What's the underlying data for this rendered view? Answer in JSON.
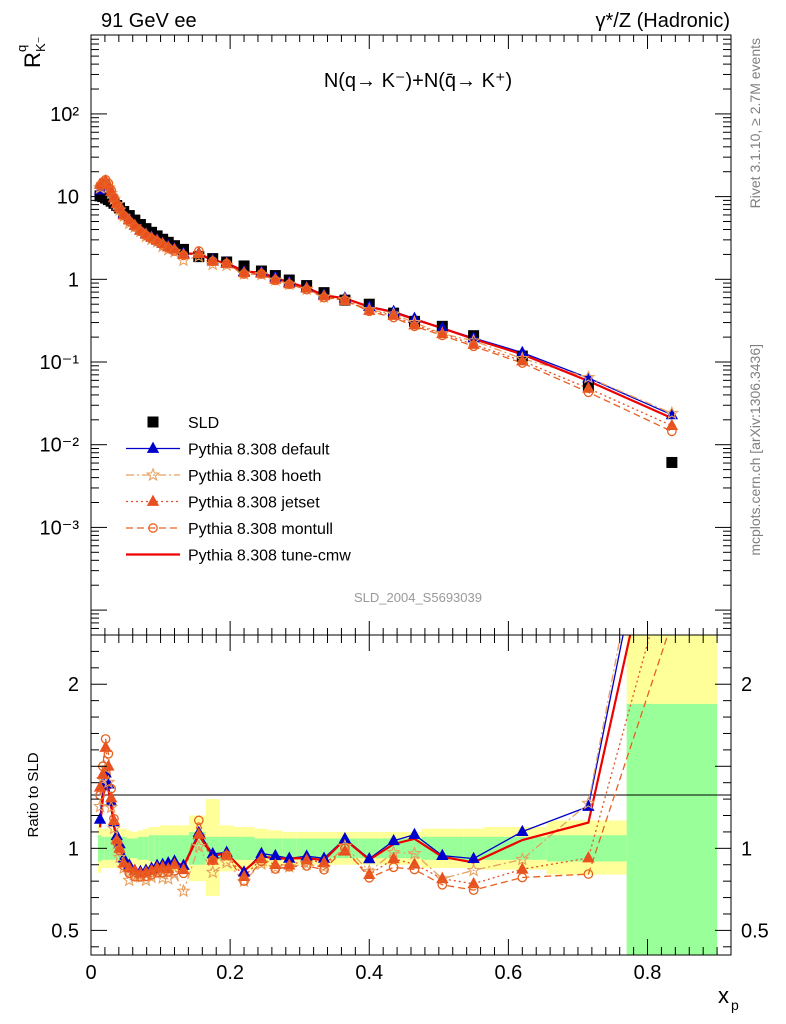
{
  "header": {
    "left": "91 GeV ee",
    "right": "γ*/Z (Hadronic)"
  },
  "side_labels": {
    "rivet": "Rivet 3.1.10, ≥ 2.7M events",
    "mcplots": "mcplots.cern.ch [arXiv:1306.3436]"
  },
  "chart_data": [
    {
      "type": "scatter",
      "title": "N(q→ K⁻)+N(q̄→ K⁺)",
      "ylabel": "R^q_K⁻",
      "analysis_tag": "SLD_2004_S5693039",
      "yscale": "log",
      "xlim": [
        0,
        0.92
      ],
      "ylim": [
        5e-05,
        900
      ],
      "y_ticks": [
        {
          "value": 0.001,
          "label": "10⁻³"
        },
        {
          "value": 0.01,
          "label": "10⁻²"
        },
        {
          "value": 0.1,
          "label": "10⁻¹"
        },
        {
          "value": 1,
          "label": "1"
        },
        {
          "value": 10,
          "label": "10"
        },
        {
          "value": 100,
          "label": "10²"
        }
      ],
      "legend_position": "lower-left",
      "x": [
        0.013,
        0.017,
        0.021,
        0.025,
        0.029,
        0.033,
        0.037,
        0.041,
        0.047,
        0.055,
        0.063,
        0.071,
        0.079,
        0.087,
        0.095,
        0.103,
        0.111,
        0.12,
        0.133,
        0.155,
        0.175,
        0.195,
        0.22,
        0.245,
        0.265,
        0.285,
        0.31,
        0.335,
        0.365,
        0.4,
        0.435,
        0.465,
        0.505,
        0.55,
        0.62,
        0.715,
        0.835
      ],
      "data": {
        "name": "SLD",
        "values": [
          10.2,
          10.0,
          9.6,
          9.2,
          8.8,
          8.3,
          7.8,
          7.3,
          6.6,
          5.9,
          5.2,
          4.6,
          4.1,
          3.7,
          3.35,
          3.05,
          2.8,
          2.55,
          2.3,
          1.88,
          1.78,
          1.62,
          1.45,
          1.26,
          1.11,
          0.98,
          0.84,
          0.69,
          0.56,
          0.5,
          0.39,
          0.31,
          0.27,
          0.208,
          0.118,
          0.051,
          0.0061
        ]
      },
      "series": [
        {
          "name": "Pythia 8.308 default",
          "color": "#0000cc",
          "style": "solid",
          "marker": "triangle",
          "values": [
            12.0,
            13.8,
            14.0,
            12.8,
            11.3,
            9.6,
            8.4,
            7.5,
            6.2,
            5.3,
            4.5,
            3.95,
            3.55,
            3.25,
            3.0,
            2.75,
            2.55,
            2.35,
            2.06,
            2.06,
            1.72,
            1.58,
            1.24,
            1.22,
            1.06,
            0.92,
            0.8,
            0.648,
            0.593,
            0.468,
            0.408,
            0.336,
            0.258,
            0.195,
            0.13,
            0.064,
            0.023
          ]
        },
        {
          "name": "Pythia 8.308 hoeth",
          "color": "#e8a060",
          "style": "dashdot",
          "marker": "star",
          "values": [
            12.8,
            14.2,
            14.3,
            12.9,
            11.0,
            9.3,
            8.0,
            6.9,
            5.8,
            4.75,
            4.3,
            3.8,
            3.3,
            3.05,
            2.85,
            2.5,
            2.28,
            2.15,
            1.7,
            1.9,
            1.52,
            1.48,
            1.16,
            1.14,
            0.98,
            0.87,
            0.76,
            0.61,
            0.567,
            0.43,
            0.38,
            0.3,
            0.22,
            0.18,
            0.11,
            0.065,
            0.024
          ]
        },
        {
          "name": "Pythia 8.308 jetset",
          "color": "#e85020",
          "style": "dotted",
          "marker": "triangle",
          "values": [
            14.0,
            14.5,
            15.5,
            13.8,
            11.5,
            9.7,
            8.2,
            7.3,
            6.0,
            5.2,
            4.5,
            3.9,
            3.5,
            3.2,
            2.95,
            2.7,
            2.45,
            2.3,
            2.0,
            2.04,
            1.65,
            1.55,
            1.2,
            1.18,
            1.0,
            0.88,
            0.78,
            0.63,
            0.55,
            0.42,
            0.365,
            0.28,
            0.22,
            0.163,
            0.103,
            0.048,
            0.017
          ]
        },
        {
          "name": "Pythia 8.308 montull",
          "color": "#e86020",
          "style": "dashed",
          "marker": "circle",
          "values": [
            13.5,
            15.0,
            16.0,
            14.5,
            12.0,
            9.8,
            8.1,
            7.2,
            5.9,
            5.0,
            4.3,
            3.8,
            3.4,
            3.1,
            2.85,
            2.6,
            2.4,
            2.2,
            1.95,
            2.2,
            1.65,
            1.55,
            1.16,
            1.16,
            0.97,
            0.87,
            0.75,
            0.6,
            0.56,
            0.41,
            0.345,
            0.27,
            0.21,
            0.155,
            0.097,
            0.043,
            0.0145
          ]
        },
        {
          "name": "Pythia 8.308 tune-cmw",
          "color": "#ee0000",
          "style": "solid",
          "marker": "none",
          "values": [
            11.5,
            13.0,
            13.5,
            12.5,
            11.0,
            9.4,
            8.3,
            7.4,
            6.2,
            5.3,
            4.5,
            3.95,
            3.55,
            3.25,
            3.0,
            2.75,
            2.55,
            2.35,
            2.05,
            2.03,
            1.7,
            1.57,
            1.25,
            1.2,
            1.04,
            0.92,
            0.79,
            0.64,
            0.59,
            0.465,
            0.4,
            0.328,
            0.256,
            0.19,
            0.124,
            0.059,
            0.021
          ]
        }
      ]
    },
    {
      "type": "scatter",
      "ylabel": "Ratio to SLD",
      "xlabel": "x_p",
      "ylim": [
        0.35,
        2.3
      ],
      "y_ticks": [
        {
          "value": 0.5,
          "label": "0.5"
        },
        {
          "value": 1,
          "label": "1"
        },
        {
          "value": 2,
          "label": "2"
        }
      ],
      "x_ticks": [
        {
          "value": 0,
          "label": "0"
        },
        {
          "value": 0.2,
          "label": "0.2"
        },
        {
          "value": 0.4,
          "label": "0.4"
        },
        {
          "value": 0.6,
          "label": "0.6"
        },
        {
          "value": 0.8,
          "label": "0.8"
        }
      ],
      "bin_edges": [
        0.01,
        0.015,
        0.019,
        0.023,
        0.027,
        0.031,
        0.035,
        0.039,
        0.043,
        0.051,
        0.059,
        0.067,
        0.075,
        0.083,
        0.091,
        0.099,
        0.107,
        0.115,
        0.125,
        0.141,
        0.165,
        0.185,
        0.205,
        0.235,
        0.255,
        0.275,
        0.295,
        0.325,
        0.345,
        0.385,
        0.415,
        0.455,
        0.475,
        0.535,
        0.565,
        0.655,
        0.77,
        0.9
      ],
      "band_inner": [
        0.92,
        0.93,
        0.93,
        0.93,
        0.93,
        0.93,
        0.93,
        0.93,
        0.93,
        0.94,
        0.94,
        0.93,
        0.93,
        0.92,
        0.92,
        0.92,
        0.92,
        0.92,
        0.92,
        0.9,
        0.93,
        0.93,
        0.93,
        0.94,
        0.94,
        0.94,
        0.94,
        0.94,
        0.94,
        0.94,
        0.94,
        0.94,
        0.93,
        0.93,
        0.93,
        0.92,
        0.3
      ],
      "band_inner_hi": [
        1.08,
        1.07,
        1.07,
        1.07,
        1.07,
        1.07,
        1.07,
        1.07,
        1.07,
        1.06,
        1.06,
        1.07,
        1.07,
        1.08,
        1.08,
        1.08,
        1.08,
        1.08,
        1.08,
        1.1,
        1.07,
        1.07,
        1.07,
        1.06,
        1.06,
        1.06,
        1.06,
        1.06,
        1.06,
        1.06,
        1.06,
        1.06,
        1.07,
        1.07,
        1.07,
        1.08,
        1.88
      ],
      "band_outer": [
        0.85,
        0.88,
        0.88,
        0.88,
        0.88,
        0.88,
        0.88,
        0.88,
        0.88,
        0.89,
        0.9,
        0.89,
        0.88,
        0.87,
        0.87,
        0.86,
        0.86,
        0.86,
        0.86,
        0.8,
        0.71,
        0.86,
        0.87,
        0.88,
        0.89,
        0.9,
        0.9,
        0.9,
        0.9,
        0.9,
        0.9,
        0.9,
        0.88,
        0.88,
        0.87,
        0.84,
        0.3
      ],
      "band_outer_hi": [
        1.15,
        1.12,
        1.12,
        1.12,
        1.12,
        1.12,
        1.12,
        1.12,
        1.12,
        1.11,
        1.1,
        1.11,
        1.12,
        1.13,
        1.13,
        1.14,
        1.14,
        1.14,
        1.14,
        1.2,
        1.3,
        1.14,
        1.13,
        1.12,
        1.11,
        1.1,
        1.1,
        1.1,
        1.1,
        1.1,
        1.1,
        1.1,
        1.12,
        1.12,
        1.13,
        1.17,
        2.3
      ]
    }
  ]
}
